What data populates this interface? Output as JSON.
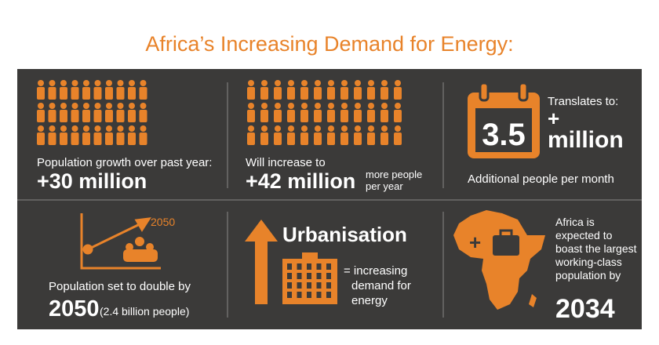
{
  "title": "Africa’s Increasing Demand for Energy:",
  "population_growth": {
    "label": "Population growth over past year:",
    "value": "+30 million"
  },
  "future_growth": {
    "label": "Will increase to",
    "value": "+42 million",
    "note": [
      "more people",
      "per year"
    ]
  },
  "monthly": {
    "intro": "Translates to:",
    "number": "3.5",
    "plus": "+",
    "unit": "million",
    "caption": "Additional people per month"
  },
  "doubling": {
    "icon_year": "2050",
    "label": "Population set to double by",
    "year": "2050",
    "note": "(2.4 billion people)"
  },
  "urbanisation": {
    "title": "Urbanisation",
    "lines": [
      "= increasing",
      "demand for",
      "energy"
    ]
  },
  "working_class": {
    "lines": [
      "Africa is",
      "expected to",
      "boast the largest",
      "working-class",
      "population by"
    ],
    "year": "2034"
  }
}
